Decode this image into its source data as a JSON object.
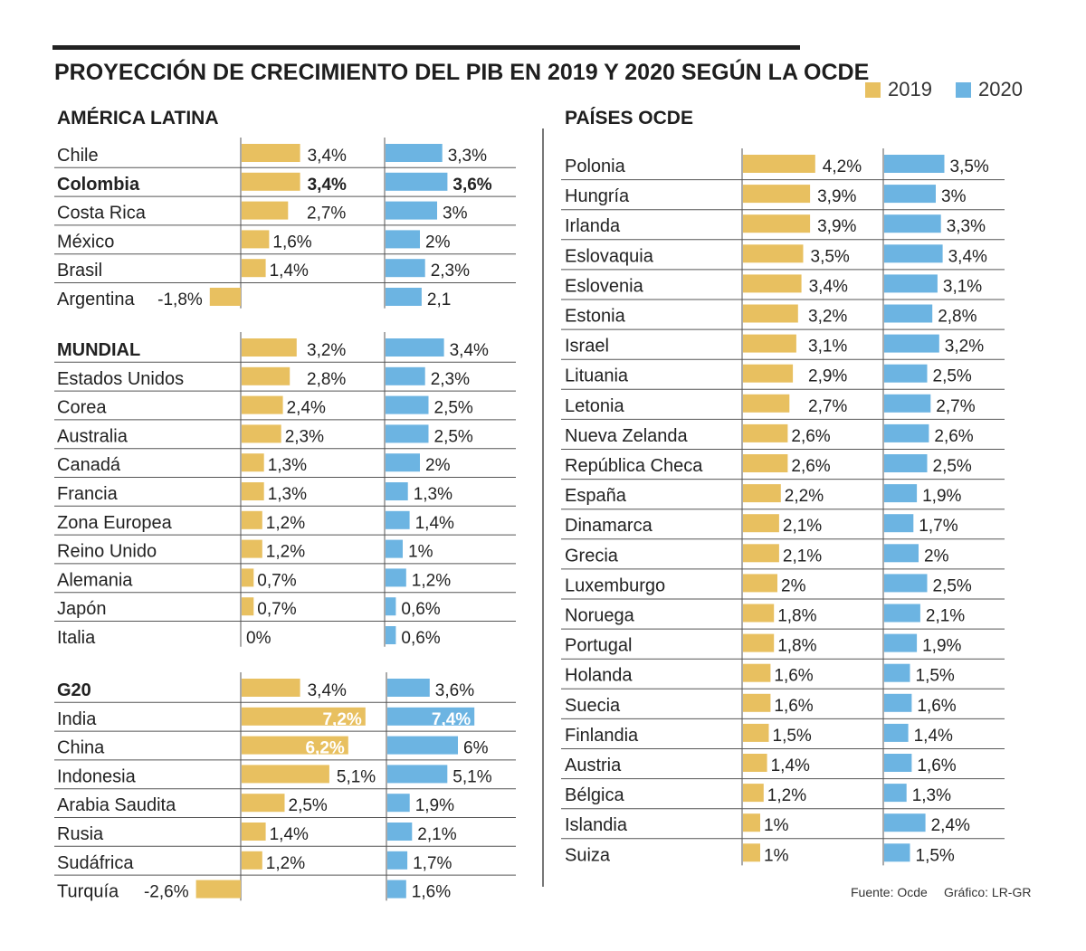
{
  "title": "PROYECCIÓN DE CRECIMIENTO DEL PIB EN 2019 Y 2020 SEGÚN LA OCDE",
  "legend": [
    {
      "label": "2019",
      "color": "#e8c060"
    },
    {
      "label": "2020",
      "color": "#6cb4e2"
    }
  ],
  "footer": {
    "source": "Fuente: Ocde",
    "credit": "Gráfico: LR-GR"
  },
  "chart_data": {
    "type": "bar",
    "orientation": "horizontal",
    "title": "PROYECCIÓN DE CRECIMIENTO DEL PIB EN 2019 Y 2020 SEGÚN LA OCDE",
    "series_names": [
      "2019",
      "2020"
    ],
    "sections": [
      {
        "key": "latam",
        "title": "AMÉRICA LATINA",
        "rows": [
          {
            "name": "Chile",
            "v2019": 3.4,
            "l2019": "3,4%",
            "v2020": 3.3,
            "l2020": "3,3%"
          },
          {
            "name": "Colombia",
            "bold": true,
            "v2019": 3.4,
            "l2019": "3,4%",
            "v2020": 3.6,
            "l2020": "3,6%"
          },
          {
            "name": "Costa Rica",
            "v2019": 2.7,
            "l2019": "2,7%",
            "v2020": 3,
            "l2020": "3%"
          },
          {
            "name": "México",
            "v2019": 1.6,
            "l2019": "1,6%",
            "v2020": 2,
            "l2020": "2%"
          },
          {
            "name": "Brasil",
            "v2019": 1.4,
            "l2019": "1,4%",
            "v2020": 2.3,
            "l2020": "2,3%"
          },
          {
            "name": "Argentina",
            "v2019": -1.8,
            "l2019": "-1,8%",
            "v2020": 2.1,
            "l2020": "2,1"
          }
        ]
      },
      {
        "key": "mundial",
        "title": "MUNDIAL",
        "rows": [
          {
            "name": "MUNDIAL",
            "header": true,
            "v2019": 3.2,
            "l2019": "3,2%",
            "v2020": 3.4,
            "l2020": "3,4%"
          },
          {
            "name": "Estados Unidos",
            "v2019": 2.8,
            "l2019": "2,8%",
            "v2020": 2.3,
            "l2020": "2,3%"
          },
          {
            "name": "Corea",
            "v2019": 2.4,
            "l2019": "2,4%",
            "v2020": 2.5,
            "l2020": "2,5%"
          },
          {
            "name": "Australia",
            "v2019": 2.3,
            "l2019": "2,3%",
            "v2020": 2.5,
            "l2020": "2,5%"
          },
          {
            "name": "Canadá",
            "v2019": 1.3,
            "l2019": "1,3%",
            "v2020": 2,
            "l2020": "2%"
          },
          {
            "name": "Francia",
            "v2019": 1.3,
            "l2019": "1,3%",
            "v2020": 1.3,
            "l2020": "1,3%"
          },
          {
            "name": "Zona Europea",
            "v2019": 1.2,
            "l2019": "1,2%",
            "v2020": 1.4,
            "l2020": "1,4%"
          },
          {
            "name": "Reino Unido",
            "v2019": 1.2,
            "l2019": "1,2%",
            "v2020": 1,
            "l2020": "1%"
          },
          {
            "name": "Alemania",
            "v2019": 0.7,
            "l2019": "0,7%",
            "v2020": 1.2,
            "l2020": "1,2%"
          },
          {
            "name": "Japón",
            "v2019": 0.7,
            "l2019": "0,7%",
            "v2020": 0.6,
            "l2020": "0,6%"
          },
          {
            "name": "Italia",
            "v2019": 0,
            "l2019": "0%",
            "v2020": 0.6,
            "l2020": "0,6%"
          }
        ]
      },
      {
        "key": "g20",
        "title": "G20",
        "rows": [
          {
            "name": "G20",
            "header": true,
            "v2019": 3.4,
            "l2019": "3,4%",
            "v2020": 3.6,
            "l2020": "3,6%"
          },
          {
            "name": "India",
            "v2019": 7.2,
            "l2019": "7,2%",
            "v2020": 7.4,
            "l2020": "7,4%"
          },
          {
            "name": "China",
            "v2019": 6.2,
            "l2019": "6,2%",
            "v2020": 6,
            "l2020": "6%"
          },
          {
            "name": "Indonesia",
            "v2019": 5.1,
            "l2019": "5,1%",
            "v2020": 5.1,
            "l2020": "5,1%"
          },
          {
            "name": "Arabia Saudita",
            "v2019": 2.5,
            "l2019": "2,5%",
            "v2020": 1.9,
            "l2020": "1,9%"
          },
          {
            "name": "Rusia",
            "v2019": 1.4,
            "l2019": "1,4%",
            "v2020": 2.1,
            "l2020": "2,1%"
          },
          {
            "name": "Sudáfrica",
            "v2019": 1.2,
            "l2019": "1,2%",
            "v2020": 1.7,
            "l2020": "1,7%"
          },
          {
            "name": "Turquía",
            "v2019": -2.6,
            "l2019": "-2,6%",
            "v2020": 1.6,
            "l2020": "1,6%"
          }
        ]
      },
      {
        "key": "ocde",
        "title": "PAÍSES OCDE",
        "rows": [
          {
            "name": "Polonia",
            "v2019": 4.2,
            "l2019": "4,2%",
            "v2020": 3.5,
            "l2020": "3,5%"
          },
          {
            "name": "Hungría",
            "v2019": 3.9,
            "l2019": "3,9%",
            "v2020": 3,
            "l2020": "3%"
          },
          {
            "name": "Irlanda",
            "v2019": 3.9,
            "l2019": "3,9%",
            "v2020": 3.3,
            "l2020": "3,3%"
          },
          {
            "name": "Eslovaquia",
            "v2019": 3.5,
            "l2019": "3,5%",
            "v2020": 3.4,
            "l2020": "3,4%"
          },
          {
            "name": "Eslovenia",
            "v2019": 3.4,
            "l2019": "3,4%",
            "v2020": 3.1,
            "l2020": "3,1%"
          },
          {
            "name": "Estonia",
            "v2019": 3.2,
            "l2019": "3,2%",
            "v2020": 2.8,
            "l2020": "2,8%"
          },
          {
            "name": "Israel",
            "v2019": 3.1,
            "l2019": "3,1%",
            "v2020": 3.2,
            "l2020": "3,2%"
          },
          {
            "name": "Lituania",
            "v2019": 2.9,
            "l2019": "2,9%",
            "v2020": 2.5,
            "l2020": "2,5%"
          },
          {
            "name": "Letonia",
            "v2019": 2.7,
            "l2019": "2,7%",
            "v2020": 2.7,
            "l2020": "2,7%"
          },
          {
            "name": "Nueva Zelanda",
            "v2019": 2.6,
            "l2019": "2,6%",
            "v2020": 2.6,
            "l2020": "2,6%"
          },
          {
            "name": "República Checa",
            "v2019": 2.6,
            "l2019": "2,6%",
            "v2020": 2.5,
            "l2020": "2,5%"
          },
          {
            "name": "España",
            "v2019": 2.2,
            "l2019": "2,2%",
            "v2020": 1.9,
            "l2020": "1,9%"
          },
          {
            "name": "Dinamarca",
            "v2019": 2.1,
            "l2019": "2,1%",
            "v2020": 1.7,
            "l2020": "1,7%"
          },
          {
            "name": "Grecia",
            "v2019": 2.1,
            "l2019": "2,1%",
            "v2020": 2,
            "l2020": "2%"
          },
          {
            "name": "Luxemburgo",
            "v2019": 2,
            "l2019": "2%",
            "v2020": 2.5,
            "l2020": "2,5%"
          },
          {
            "name": "Noruega",
            "v2019": 1.8,
            "l2019": "1,8%",
            "v2020": 2.1,
            "l2020": "2,1%"
          },
          {
            "name": "Portugal",
            "v2019": 1.8,
            "l2019": "1,8%",
            "v2020": 1.9,
            "l2020": "1,9%"
          },
          {
            "name": "Holanda",
            "v2019": 1.6,
            "l2019": "1,6%",
            "v2020": 1.5,
            "l2020": "1,5%"
          },
          {
            "name": "Suecia",
            "v2019": 1.6,
            "l2019": "1,6%",
            "v2020": 1.6,
            "l2020": "1,6%"
          },
          {
            "name": "Finlandia",
            "v2019": 1.5,
            "l2019": "1,5%",
            "v2020": 1.4,
            "l2020": "1,4%"
          },
          {
            "name": "Austria",
            "v2019": 1.4,
            "l2019": "1,4%",
            "v2020": 1.6,
            "l2020": "1,6%"
          },
          {
            "name": "Bélgica",
            "v2019": 1.2,
            "l2019": "1,2%",
            "v2020": 1.3,
            "l2020": "1,3%"
          },
          {
            "name": "Islandia",
            "v2019": 1,
            "l2019": "1%",
            "v2020": 2.4,
            "l2020": "2,4%"
          },
          {
            "name": "Suiza",
            "v2019": 1,
            "l2019": "1%",
            "v2020": 1.5,
            "l2020": "1,5%"
          }
        ]
      }
    ]
  }
}
